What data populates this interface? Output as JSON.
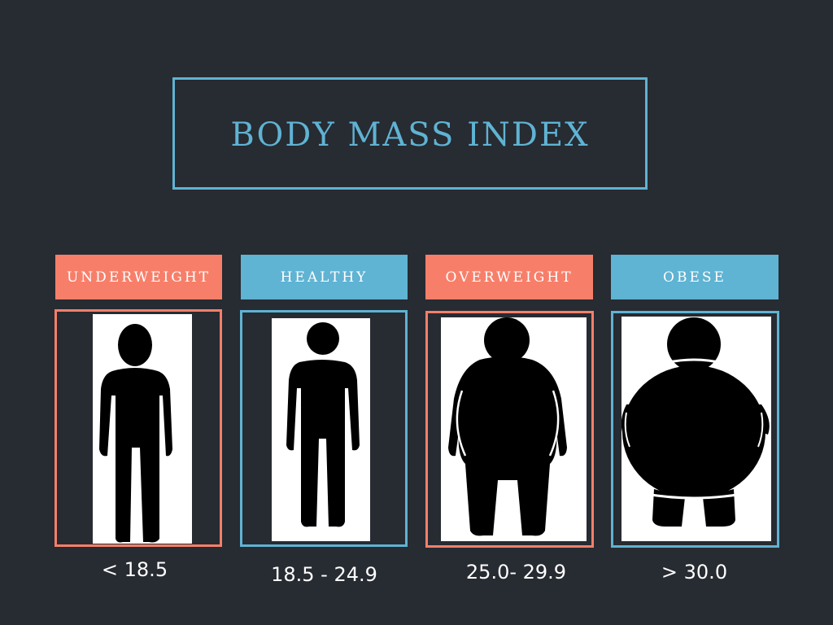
{
  "title": "BODY MASS INDEX",
  "categories": [
    {
      "label": "UNDERWEIGHT",
      "range": "< 18.5",
      "figure": "thin-person-icon",
      "color": "#f77f6a"
    },
    {
      "label": "HEALTHY",
      "range": "18.5 - 24.9",
      "figure": "healthy-person-icon",
      "color": "#5fb3d3"
    },
    {
      "label": "OVERWEIGHT",
      "range": "25.0- 29.9",
      "figure": "overweight-person-icon",
      "color": "#f77f6a"
    },
    {
      "label": "OBESE",
      "range": "> 30.0",
      "figure": "obese-person-icon",
      "color": "#5fb3d3"
    }
  ],
  "colors": {
    "background": "#272b32",
    "accent_blue": "#5fb3d3",
    "accent_red": "#f77f6a"
  }
}
